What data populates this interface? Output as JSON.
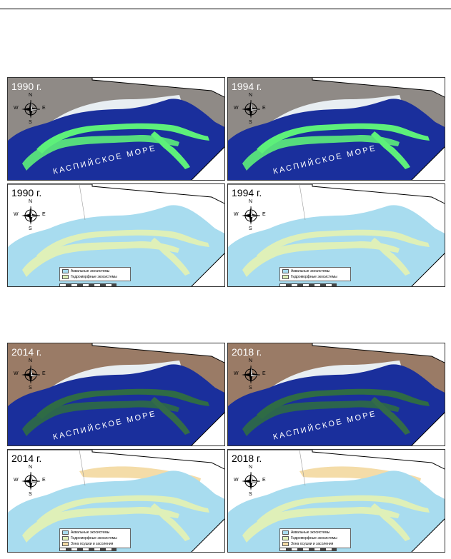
{
  "sea_label": "КАСПИЙСКОЕ МОРЕ",
  "compass": {
    "n": "N",
    "s": "S",
    "e": "E",
    "w": "W"
  },
  "colors": {
    "aquatic": "#a8dcef",
    "hydro": "#dff0b8",
    "desert": "#f4dca8",
    "deep_water": "#1a2f9c",
    "veg": "#5df07a"
  },
  "legend": {
    "aquatic": "Аквальные экосистемы",
    "hydro": "Гидроморфные экосистемы",
    "desert": "Зона осушки и засоления"
  },
  "panels": [
    {
      "year": "1990 г.",
      "kind": "satellite"
    },
    {
      "year": "1994 г.",
      "kind": "satellite"
    },
    {
      "year": "1990 г.",
      "kind": "map",
      "legend_rows": 2
    },
    {
      "year": "1994 г.",
      "kind": "map",
      "legend_rows": 2
    },
    {
      "year": "2014 г.",
      "kind": "satellite"
    },
    {
      "year": "2018 г.",
      "kind": "satellite"
    },
    {
      "year": "2014 г.",
      "kind": "map",
      "legend_rows": 3
    },
    {
      "year": "2018 г.",
      "kind": "map",
      "legend_rows": 3
    }
  ]
}
